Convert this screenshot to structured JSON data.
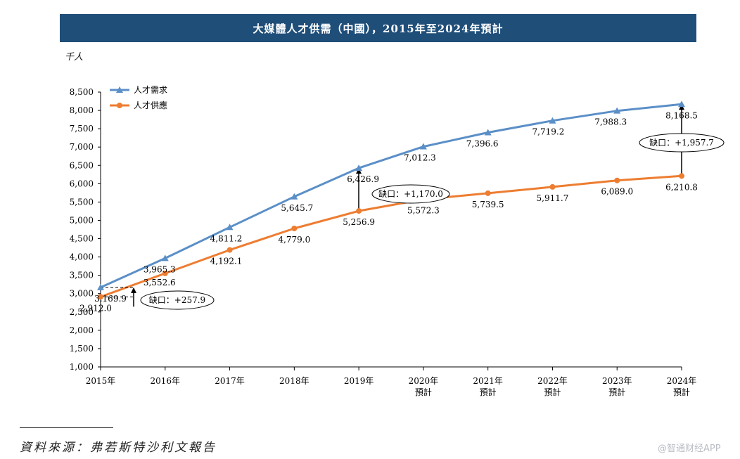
{
  "title": "大媒體人才供需（中國），2015年至2024年預計",
  "unit_label": "千人",
  "source_text": "資料來源：弗若斯特沙利文報告",
  "watermark": "@智通财经APP",
  "colors": {
    "title_bg": "#1f4e79",
    "demand": "#5b8fc7",
    "supply": "#ed7d31",
    "axis": "#000000"
  },
  "chart_data": {
    "type": "line",
    "title": "大媒體人才供需（中國），2015年至2024年預計",
    "xlabel": "",
    "ylabel": "千人",
    "ylim": [
      1000,
      8500
    ],
    "yticks": [
      1000,
      1500,
      2000,
      2500,
      3000,
      3500,
      4000,
      4500,
      5000,
      5500,
      6000,
      6500,
      7000,
      7500,
      8000,
      8500
    ],
    "ytick_labels": [
      "1,000",
      "1,500",
      "2,000",
      "2,500",
      "3,000",
      "3,500",
      "4,000",
      "4,500",
      "5,000",
      "5,500",
      "6,000",
      "6,500",
      "7,000",
      "7,500",
      "8,000",
      "8,500"
    ],
    "categories": [
      [
        "2015年"
      ],
      [
        "2016年"
      ],
      [
        "2017年"
      ],
      [
        "2018年"
      ],
      [
        "2019年"
      ],
      [
        "2020年",
        "預計"
      ],
      [
        "2021年",
        "預計"
      ],
      [
        "2022年",
        "預計"
      ],
      [
        "2023年",
        "預計"
      ],
      [
        "2024年",
        "預計"
      ]
    ],
    "legend_position": "top-left",
    "series": [
      {
        "name": "人才需求",
        "marker": "triangle",
        "color": "#5b8fc7",
        "values": [
          3169.9,
          3965.3,
          4811.2,
          5645.7,
          6426.9,
          7012.3,
          7396.6,
          7719.2,
          7988.3,
          8168.5
        ],
        "labels": [
          "3,169.9",
          "3,965.3",
          "4,811.2",
          "5,645.7",
          "6,426.9",
          "7,012.3",
          "7,396.6",
          "7,719.2",
          "7,988.3",
          "8,168.5"
        ]
      },
      {
        "name": "人才供應",
        "marker": "circle",
        "color": "#ed7d31",
        "values": [
          2912.0,
          3552.6,
          4192.1,
          4779.0,
          5256.9,
          5572.3,
          5739.5,
          5911.7,
          6089.0,
          6210.8
        ],
        "labels": [
          "2,912.0",
          "3,552.6",
          "4,192.1",
          "4,779.0",
          "5,256.9",
          "5,572.3",
          "5,739.5",
          "5,911.7",
          "6,089.0",
          "6,210.8"
        ]
      }
    ],
    "annotations": [
      {
        "year_index": 0,
        "text": "缺口：+257.9"
      },
      {
        "year_index": 4,
        "text": "缺口：+1,170.0"
      },
      {
        "year_index": 9,
        "text": "缺口：+1,957.7"
      }
    ]
  }
}
